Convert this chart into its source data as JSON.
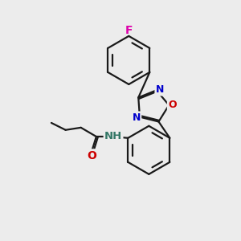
{
  "background_color": "#ececec",
  "bond_color": "#1a1a1a",
  "atom_colors": {
    "F": "#dd00aa",
    "N": "#0000cc",
    "O": "#cc0000",
    "H": "#337766",
    "C": "#1a1a1a"
  },
  "figsize": [
    3.0,
    3.0
  ],
  "dpi": 100,
  "lw": 1.6
}
